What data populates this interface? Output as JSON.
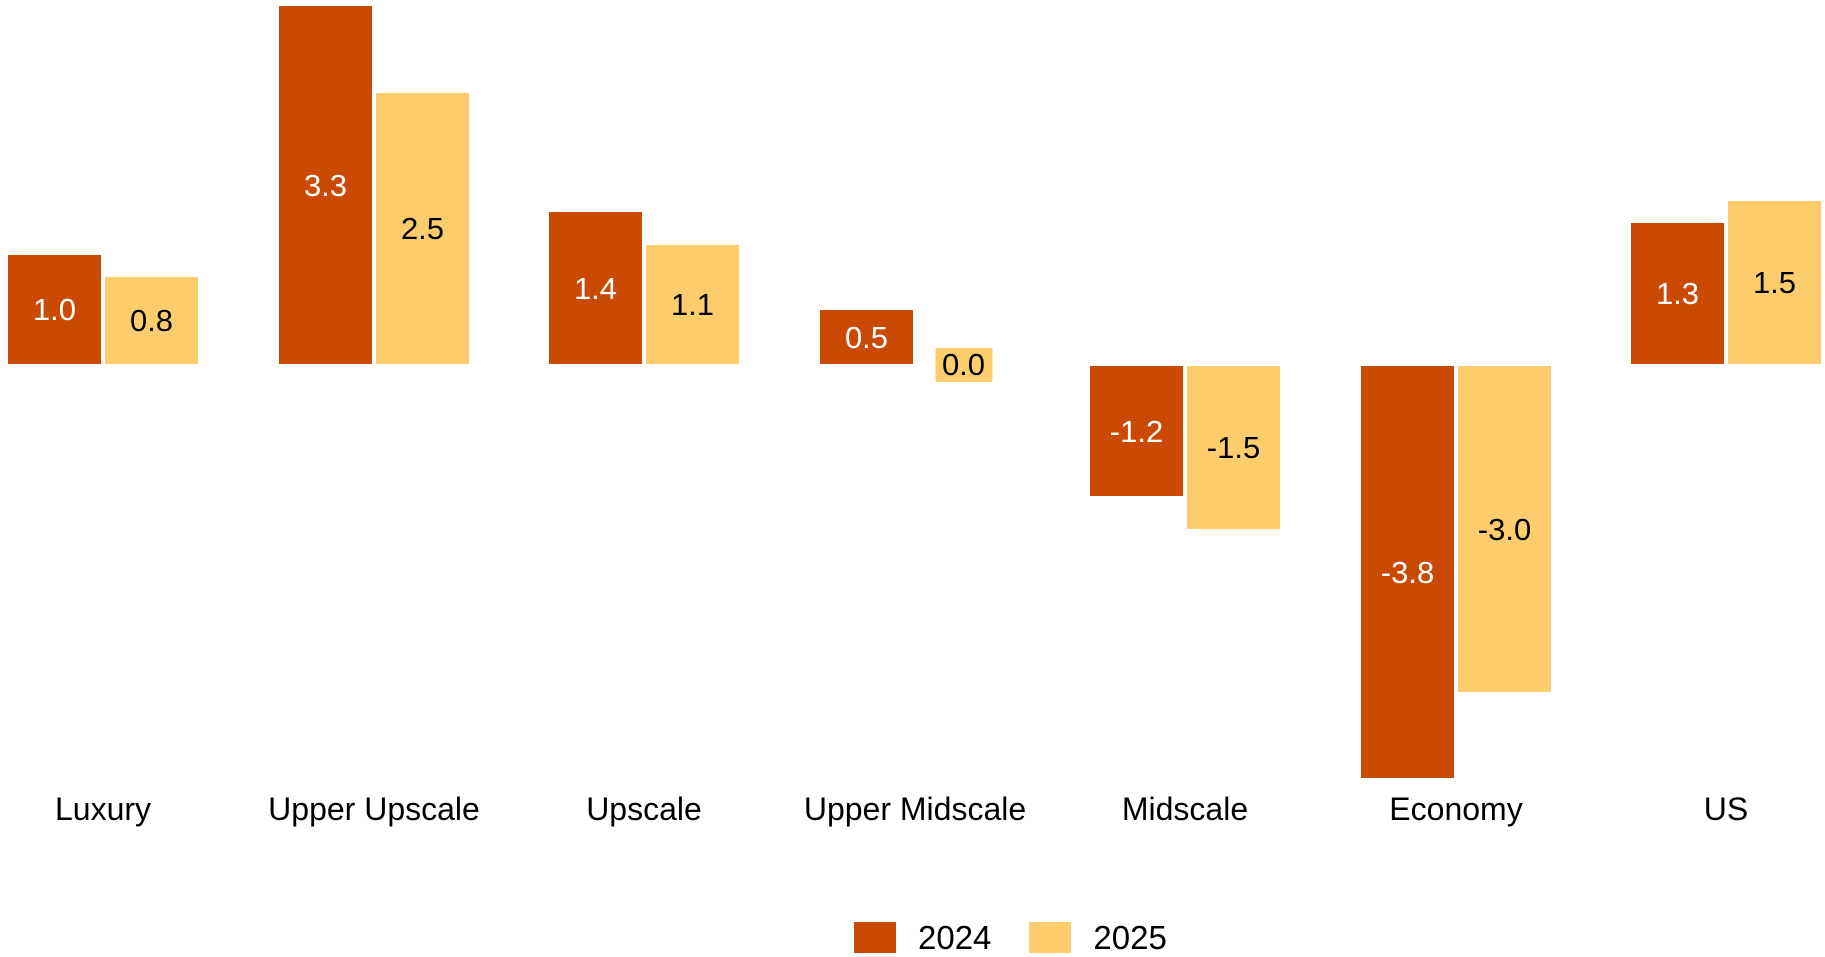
{
  "chart_data": {
    "type": "bar",
    "title": "",
    "xlabel": "",
    "ylabel": "",
    "categories": [
      "Luxury",
      "Upper Upscale",
      "Upscale",
      "Upper Midscale",
      "Midscale",
      "Economy",
      "US"
    ],
    "series": [
      {
        "name": "2024",
        "color": "#CB4A03",
        "label_color": "#FFFFFF",
        "values": [
          1.0,
          3.3,
          1.4,
          0.5,
          -1.2,
          -3.8,
          1.3
        ]
      },
      {
        "name": "2025",
        "color": "#FDCD6D",
        "label_color": "#000000",
        "values": [
          0.8,
          2.5,
          1.1,
          0.0,
          -1.5,
          -3.0,
          1.5
        ]
      }
    ],
    "value_labels": [
      [
        "1.0",
        "3.3",
        "1.4",
        "0.5",
        "-1.2",
        "-3.8",
        "1.3"
      ],
      [
        "0.8",
        "2.5",
        "1.1",
        "0.0",
        "-1.5",
        "-3.0",
        "1.5"
      ]
    ],
    "ylim": [
      -3.8,
      3.3
    ],
    "grid": false,
    "axes_visible": false,
    "value_labels_position": "center-inside",
    "legend": {
      "items": [
        "2024",
        "2025"
      ],
      "position": "bottom-center"
    },
    "background": "#FFFFFF"
  }
}
